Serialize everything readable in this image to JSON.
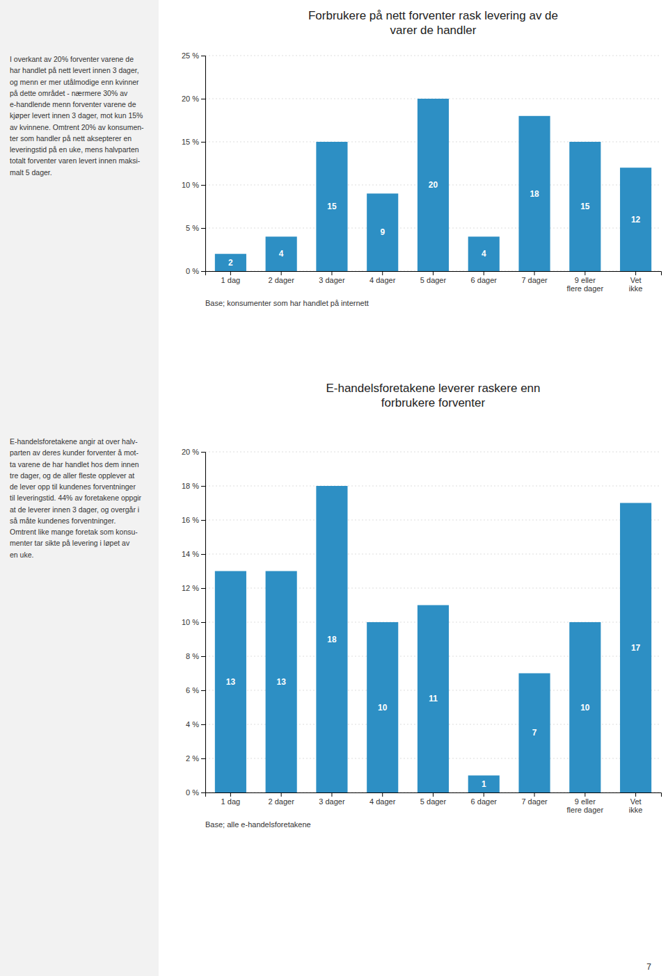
{
  "chart_data": [
    {
      "type": "bar",
      "title": "Forbrukere på nett forventer rask levering av de\nvarer de handler",
      "categories": [
        "1 dag",
        "2 dager",
        "3 dager",
        "4 dager",
        "5 dager",
        "6 dager",
        "7 dager",
        "9 eller\nflere dager",
        "Vet\nikke"
      ],
      "values": [
        2,
        4,
        15,
        9,
        20,
        4,
        18,
        15,
        12
      ],
      "color": "#2d8fc4",
      "ylim": [
        0,
        25
      ],
      "yticks": [
        {
          "value": 0,
          "label": "0 %"
        },
        {
          "value": 5,
          "label": "5 %"
        },
        {
          "value": 10,
          "label": "10 %"
        },
        {
          "value": 15,
          "label": "15 %"
        },
        {
          "value": 20,
          "label": "20 %"
        },
        {
          "value": 25,
          "label": "25 %"
        }
      ],
      "grid": true,
      "data_labels": true,
      "annotations": [
        "Base; konsumenter som har handlet på internett",
        "I overkant av 20% forventer varene de\nhar handlet på nett levert innen 3 dager,\nog menn er mer utålmodige enn kvinner\npå dette området - nærmere 30% av\ne-handlende menn forventer varene de\nkjøper levert innen 3 dager, mot kun 15%\nav kvinnene. Omtrent 20% av konsumen-\nter som handler på nett aksepterer en\nleveringstid på en uke, mens halvparten\ntotalt forventer varen levert innen maksi-\nmalt 5 dager."
      ]
    },
    {
      "type": "bar",
      "title": "E-handelsforetakene leverer raskere enn\nforbrukere forventer",
      "categories": [
        "1 dag",
        "2 dager",
        "3 dager",
        "4 dager",
        "5 dager",
        "6 dager",
        "7 dager",
        "9 eller\nflere dager",
        "Vet\nikke"
      ],
      "values": [
        13,
        13,
        18,
        10,
        11,
        1,
        7,
        10,
        17
      ],
      "color": "#2d8fc4",
      "ylim": [
        0,
        20
      ],
      "yticks": [
        {
          "value": 0,
          "label": "0 %"
        },
        {
          "value": 2,
          "label": "2 %"
        },
        {
          "value": 4,
          "label": "4 %"
        },
        {
          "value": 6,
          "label": "6 %"
        },
        {
          "value": 8,
          "label": "8 %"
        },
        {
          "value": 10,
          "label": "10 %"
        },
        {
          "value": 12,
          "label": "12 %"
        },
        {
          "value": 14,
          "label": "14 %"
        },
        {
          "value": 16,
          "label": "16 %"
        },
        {
          "value": 18,
          "label": "18 %"
        },
        {
          "value": 20,
          "label": "20 %"
        }
      ],
      "grid": true,
      "data_labels": true,
      "annotations": [
        "Base; alle e-handelsforetakene",
        "E-handelsforetakene angir at over halv-\nparten av deres kunder forventer å mot-\nta varene de har handlet hos dem innen\ntre dager, og de aller fleste opplever at\nde lever opp til kundenes forventninger\ntil leveringstid. 44% av foretakene oppgir\nat de leverer innen 3 dager, og overgår i\nså måte kundenes forventninger.\nOmtrent like mange foretak som konsu-\nmenter tar sikte på levering i løpet av\nen uke."
      ]
    }
  ],
  "page_number": "7"
}
